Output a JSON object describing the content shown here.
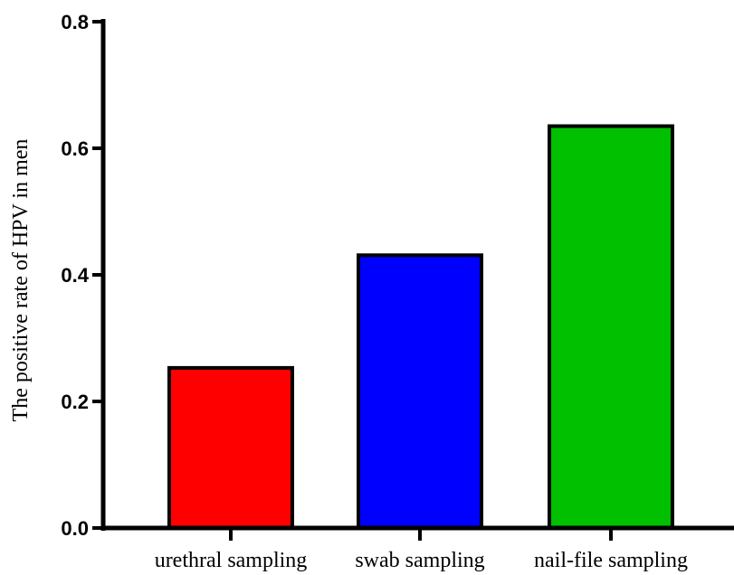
{
  "chart_data": {
    "type": "bar",
    "title": "",
    "xlabel": "",
    "ylabel": "The positive rate of HPV in men",
    "categories": [
      "urethral sampling",
      "swab sampling",
      "nail-file sampling"
    ],
    "values": [
      0.253,
      0.431,
      0.635
    ],
    "colors": [
      "#ff0000",
      "#0000ff",
      "#00c000"
    ],
    "ylim": [
      0,
      0.8
    ],
    "yticks": [
      "0.0",
      "0.2",
      "0.4",
      "0.6",
      "0.8"
    ],
    "grid": false,
    "legend": "none"
  }
}
